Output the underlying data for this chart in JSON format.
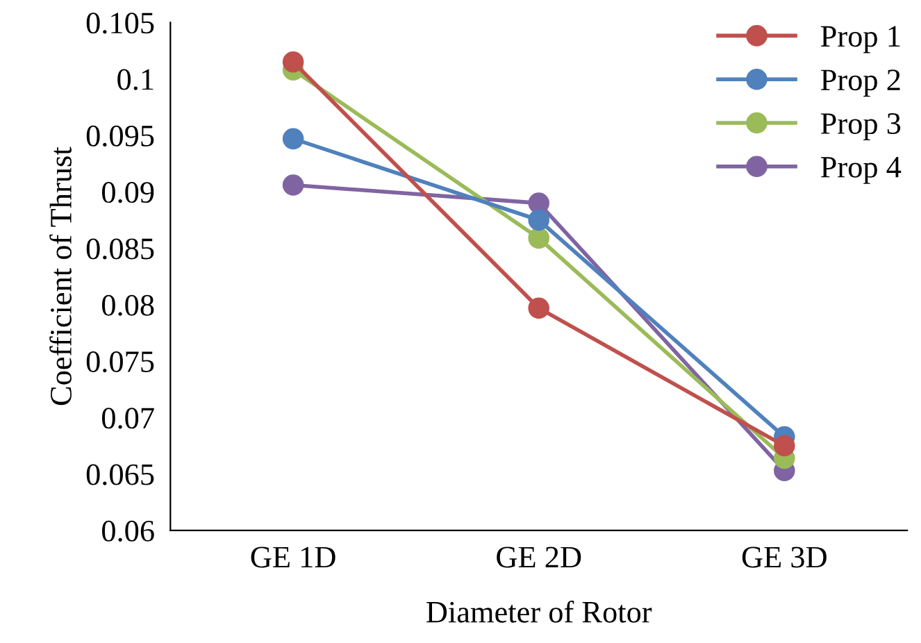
{
  "chart_data": {
    "type": "line",
    "xlabel": "Diameter of Rotor",
    "ylabel": "Coefficient of Thrust",
    "categories": [
      "GE 1D",
      "GE 2D",
      "GE 3D"
    ],
    "series": [
      {
        "name": "Prop 1",
        "color": "#c0504d",
        "values": [
          0.1015,
          0.0797,
          0.0675
        ]
      },
      {
        "name": "Prop 2",
        "color": "#4f81bd",
        "values": [
          0.0947,
          0.0875,
          0.0683
        ]
      },
      {
        "name": "Prop 3",
        "color": "#9bbb59",
        "values": [
          0.1008,
          0.0859,
          0.0664
        ]
      },
      {
        "name": "Prop 4",
        "color": "#8064a2",
        "values": [
          0.0906,
          0.089,
          0.0653
        ]
      }
    ],
    "ylim": [
      0.06,
      0.105
    ],
    "yticks": [
      0.06,
      0.065,
      0.07,
      0.075,
      0.08,
      0.085,
      0.09,
      0.095,
      0.1,
      0.105
    ],
    "grid": false,
    "legend": "top right",
    "marker": "circle",
    "line_style": "solid"
  }
}
